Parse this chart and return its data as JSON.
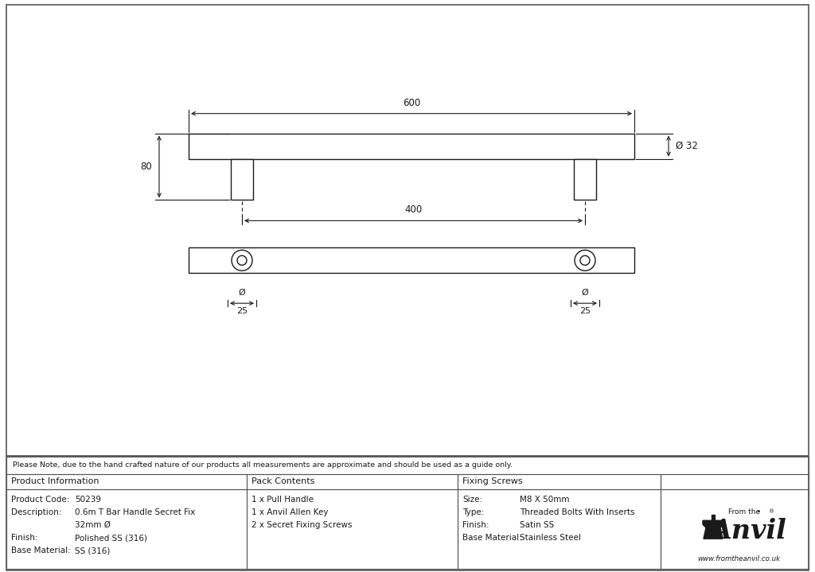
{
  "bg_color": "#ffffff",
  "line_color": "#1a1a1a",
  "fig_width": 10.24,
  "fig_height": 7.19,
  "note_text": "Please Note, due to the hand crafted nature of our products all measurements are approximate and should be used as a guide only.",
  "prod_info": [
    [
      "Product Code:",
      "50239"
    ],
    [
      "Description:",
      "0.6m T Bar Handle Secret Fix"
    ],
    [
      "",
      "32mm Ø"
    ],
    [
      "Finish:",
      "Polished SS (316)"
    ],
    [
      "Base Material:",
      "SS (316)"
    ]
  ],
  "pack_contents": [
    "1 x Pull Handle",
    "1 x Anvil Allen Key",
    "2 x Secret Fixing Screws"
  ],
  "fixing_screws": [
    [
      "Size:",
      "M8 X 50mm"
    ],
    [
      "Type:",
      "Threaded Bolts With Inserts"
    ],
    [
      "Finish:",
      "Satin SS"
    ],
    [
      "Base Material:",
      "Stainless Steel"
    ]
  ],
  "anvil_url": "www.fromtheanvil.co.uk",
  "dim_600": "600",
  "dim_400": "400",
  "dim_80": "80",
  "dim_32": "Ø 32",
  "dim_25": "25",
  "phi": "Ø"
}
